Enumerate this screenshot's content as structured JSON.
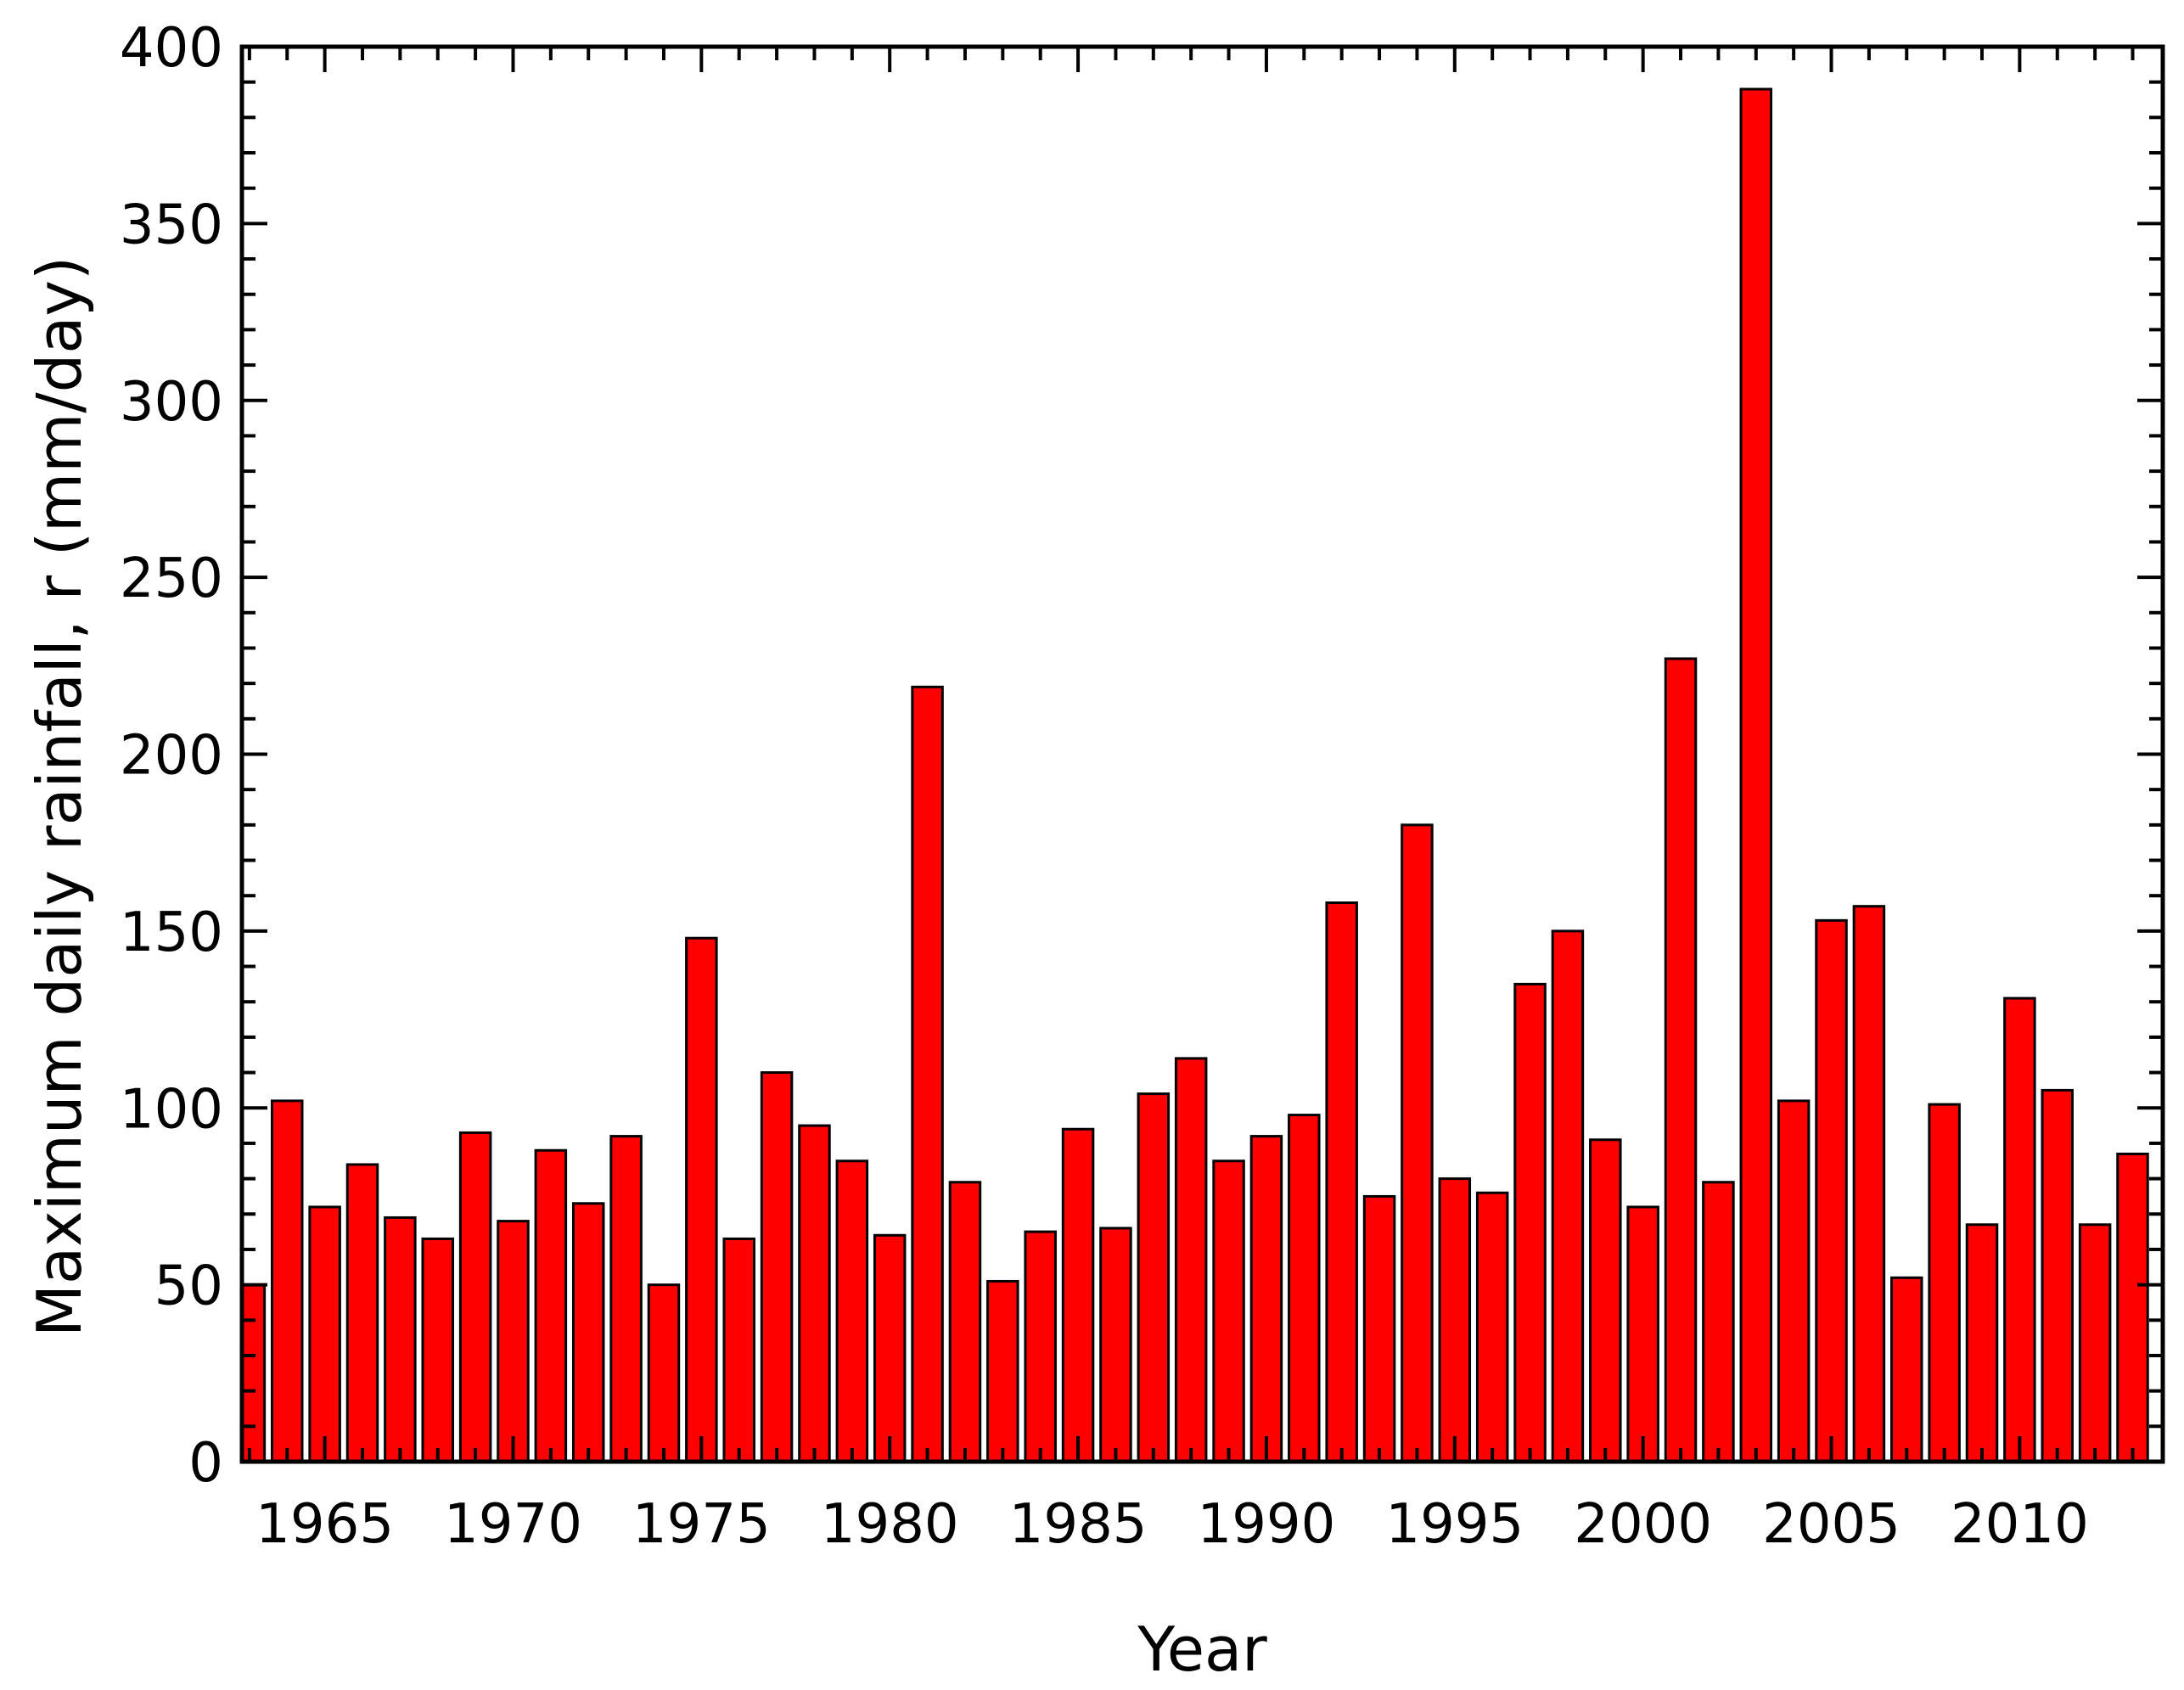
{
  "chart_data": {
    "type": "bar",
    "xlabel": "Year",
    "ylabel": "Maximum daily rainfall, r (mm/day)",
    "x": [
      1963,
      1964,
      1965,
      1966,
      1967,
      1968,
      1969,
      1970,
      1971,
      1972,
      1973,
      1974,
      1975,
      1976,
      1977,
      1978,
      1979,
      1980,
      1981,
      1982,
      1983,
      1984,
      1985,
      1986,
      1987,
      1988,
      1989,
      1990,
      1991,
      1992,
      1993,
      1994,
      1995,
      1996,
      1997,
      1998,
      1999,
      2000,
      2001,
      2002,
      2003,
      2004,
      2005,
      2006,
      2007,
      2008,
      2009,
      2010,
      2011,
      2012,
      2013
    ],
    "values": [
      50,
      102,
      72,
      84,
      69,
      63,
      93,
      68,
      88,
      73,
      92,
      50,
      148,
      63,
      110,
      95,
      85,
      64,
      219,
      79,
      51,
      65,
      94,
      66,
      104,
      114,
      85,
      92,
      98,
      158,
      75,
      180,
      80,
      76,
      135,
      150,
      91,
      72,
      227,
      79,
      388,
      102,
      153,
      157,
      52,
      101,
      67,
      131,
      105,
      67,
      87
    ],
    "xlim": [
      1962.8,
      2013.8
    ],
    "ylim": [
      0,
      400
    ],
    "x_ticks": [
      "1965",
      "1970",
      "1975",
      "1980",
      "1985",
      "1990",
      "1995",
      "2000",
      "2005",
      "2010"
    ],
    "y_ticks": [
      "0",
      "50",
      "100",
      "150",
      "200",
      "250",
      "300",
      "350",
      "400"
    ],
    "bar_color": "#ff0000",
    "edge_color": "#000000",
    "grid": false,
    "legend": "none"
  }
}
